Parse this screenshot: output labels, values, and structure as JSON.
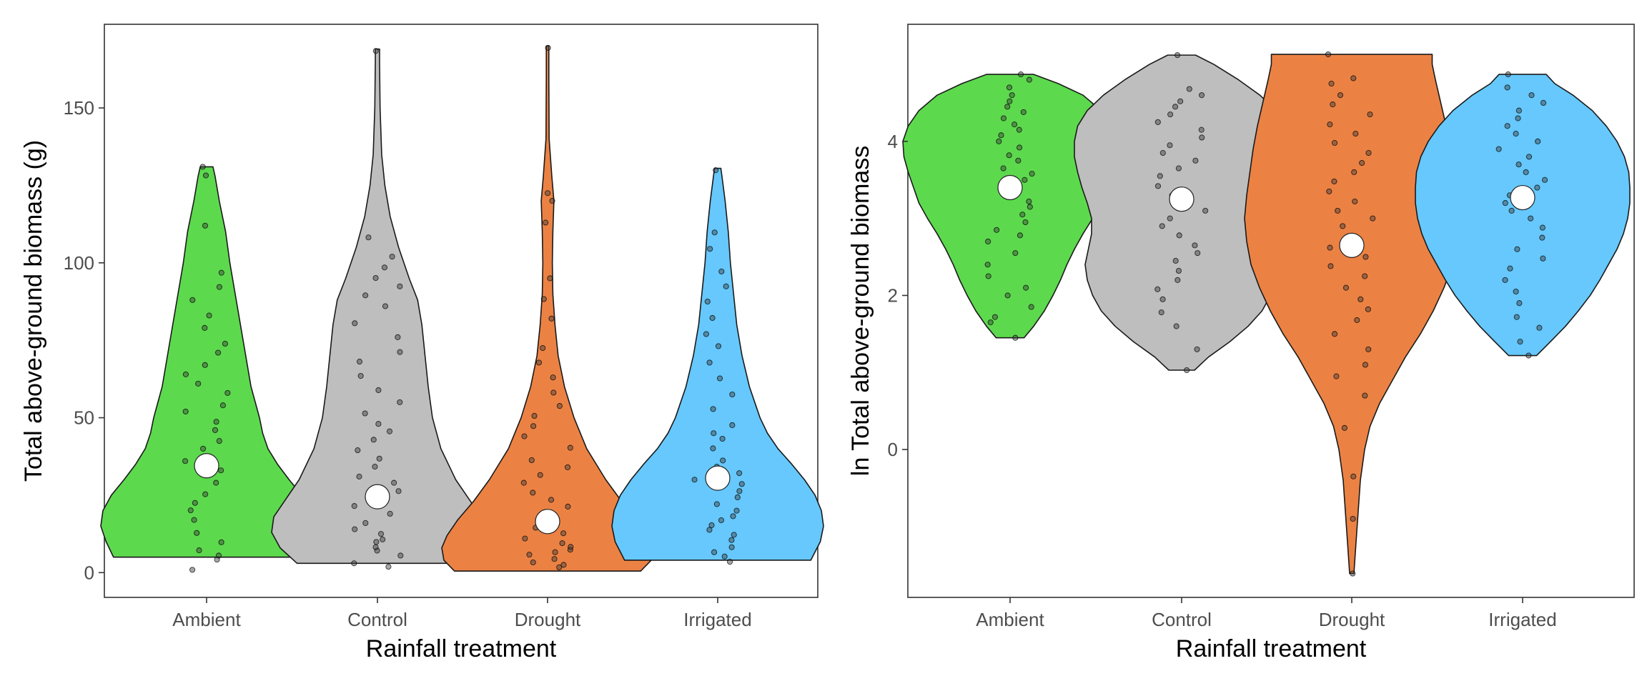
{
  "chart_data": [
    {
      "type": "violin",
      "title": "",
      "xlabel": "Rainfall treatment",
      "ylabel": "Total above-ground biomass (g)",
      "categories": [
        "Ambient",
        "Control",
        "Drought",
        "Irrigated"
      ],
      "colors": [
        "#5dd94e",
        "#bebebe",
        "#eb8244",
        "#66c8fc"
      ],
      "ylim": [
        -8,
        177
      ],
      "yticks": [
        0,
        50,
        100,
        150
      ],
      "ytick_labels": [
        "0",
        "50",
        "100",
        "150"
      ],
      "means": [
        34.5,
        24.5,
        16.5,
        30.5
      ],
      "violins": [
        {
          "category": "Ambient",
          "ymin": 5,
          "ymax": 131,
          "density": [
            [
              5,
              0.88
            ],
            [
              10,
              0.95
            ],
            [
              15,
              1.0
            ],
            [
              20,
              0.98
            ],
            [
              25,
              0.9
            ],
            [
              30,
              0.78
            ],
            [
              35,
              0.67
            ],
            [
              40,
              0.58
            ],
            [
              45,
              0.53
            ],
            [
              50,
              0.5
            ],
            [
              55,
              0.46
            ],
            [
              60,
              0.42
            ],
            [
              70,
              0.37
            ],
            [
              80,
              0.32
            ],
            [
              90,
              0.27
            ],
            [
              100,
              0.22
            ],
            [
              110,
              0.18
            ],
            [
              120,
              0.12
            ],
            [
              128,
              0.08
            ],
            [
              131,
              0.06
            ]
          ]
        },
        {
          "category": "Control",
          "ymin": 3,
          "ymax": 169,
          "density": [
            [
              3,
              0.76
            ],
            [
              8,
              0.92
            ],
            [
              13,
              1.0
            ],
            [
              18,
              0.98
            ],
            [
              23,
              0.88
            ],
            [
              30,
              0.74
            ],
            [
              40,
              0.6
            ],
            [
              50,
              0.52
            ],
            [
              60,
              0.48
            ],
            [
              70,
              0.45
            ],
            [
              80,
              0.42
            ],
            [
              88,
              0.38
            ],
            [
              95,
              0.3
            ],
            [
              105,
              0.2
            ],
            [
              115,
              0.12
            ],
            [
              125,
              0.07
            ],
            [
              135,
              0.04
            ],
            [
              150,
              0.025
            ],
            [
              165,
              0.02
            ],
            [
              169,
              0.02
            ]
          ]
        },
        {
          "category": "Drought",
          "ymin": 0.5,
          "ymax": 170,
          "density": [
            [
              0.5,
              0.88
            ],
            [
              4,
              0.98
            ],
            [
              8,
              1.0
            ],
            [
              12,
              0.95
            ],
            [
              17,
              0.85
            ],
            [
              23,
              0.7
            ],
            [
              30,
              0.55
            ],
            [
              40,
              0.37
            ],
            [
              50,
              0.25
            ],
            [
              60,
              0.16
            ],
            [
              70,
              0.1
            ],
            [
              80,
              0.07
            ],
            [
              90,
              0.05
            ],
            [
              100,
              0.045
            ],
            [
              110,
              0.05
            ],
            [
              120,
              0.06
            ],
            [
              128,
              0.04
            ],
            [
              140,
              0.015
            ],
            [
              160,
              0.012
            ],
            [
              170,
              0.012
            ]
          ]
        },
        {
          "category": "Irrigated",
          "ymin": 4,
          "ymax": 130.5,
          "density": [
            [
              4,
              0.88
            ],
            [
              10,
              0.97
            ],
            [
              15,
              1.0
            ],
            [
              20,
              0.98
            ],
            [
              25,
              0.92
            ],
            [
              30,
              0.82
            ],
            [
              35,
              0.7
            ],
            [
              40,
              0.57
            ],
            [
              45,
              0.47
            ],
            [
              50,
              0.4
            ],
            [
              60,
              0.3
            ],
            [
              70,
              0.23
            ],
            [
              80,
              0.18
            ],
            [
              90,
              0.15
            ],
            [
              100,
              0.12
            ],
            [
              110,
              0.1
            ],
            [
              120,
              0.07
            ],
            [
              128,
              0.04
            ],
            [
              130.5,
              0.03
            ]
          ]
        }
      ],
      "points": [
        [
          4.2,
          0.9,
          5.5,
          7.2,
          9.8,
          12.8,
          17,
          20.1,
          22.5,
          25.3,
          29,
          33,
          36,
          40,
          42.5,
          46,
          48.7,
          52,
          54,
          58,
          61,
          64,
          67,
          71,
          73.9,
          79,
          83,
          88,
          92.2,
          96.8,
          112,
          128.2,
          131
        ],
        [
          1.9,
          3,
          5.5,
          7.1,
          8.2,
          9.9,
          10.7,
          12.5,
          14,
          16,
          19,
          21.5,
          24,
          26.3,
          29,
          31,
          34.2,
          36.8,
          39.5,
          42.9,
          45.6,
          48,
          51.4,
          55,
          58.9,
          63.5,
          68.1,
          71.2,
          76,
          80.5,
          86,
          89.5,
          92.4,
          95.1,
          98.5,
          102,
          108.2,
          168.4
        ],
        [
          1.7,
          2.5,
          3.3,
          4.4,
          5.8,
          6.6,
          7.4,
          8.3,
          9.5,
          11,
          12.7,
          14.5,
          17,
          19.3,
          21.3,
          23.5,
          25.8,
          29,
          31.5,
          34,
          36.3,
          40.3,
          44,
          47.3,
          50.6,
          53.8,
          58.1,
          63,
          67.8,
          72.5,
          82,
          88.3,
          95,
          113,
          120,
          122.5,
          169.4
        ],
        [
          3.5,
          5.2,
          6.6,
          8.2,
          10.5,
          12.2,
          13.8,
          15.3,
          16.9,
          18.2,
          20,
          22.1,
          24.3,
          26.3,
          28.6,
          30,
          32.1,
          34.2,
          36.2,
          40.1,
          43.2,
          45,
          47.6,
          52.8,
          57.5,
          62.7,
          67.8,
          73.1,
          77,
          82.2,
          87.5,
          92.4,
          97.2,
          104.5,
          109.8,
          129.9
        ]
      ]
    },
    {
      "type": "violin",
      "title": "",
      "xlabel": "Rainfall treatment",
      "ylabel": "ln Total above-ground biomass",
      "categories": [
        "Ambient",
        "Control",
        "Drought",
        "Irrigated"
      ],
      "colors": [
        "#5dd94e",
        "#bebebe",
        "#eb8244",
        "#66c8fc"
      ],
      "ylim": [
        -1.92,
        5.52
      ],
      "yticks": [
        0,
        2,
        4
      ],
      "ytick_labels": [
        "0",
        "2",
        "4"
      ],
      "means": [
        3.4,
        3.25,
        2.65,
        3.27
      ],
      "violins": [
        {
          "category": "Ambient",
          "ymin": 1.45,
          "ymax": 4.87,
          "density": [
            [
              1.45,
              0.13
            ],
            [
              1.6,
              0.22
            ],
            [
              1.8,
              0.32
            ],
            [
              2.0,
              0.4
            ],
            [
              2.2,
              0.47
            ],
            [
              2.4,
              0.53
            ],
            [
              2.6,
              0.6
            ],
            [
              2.8,
              0.68
            ],
            [
              3.0,
              0.77
            ],
            [
              3.2,
              0.85
            ],
            [
              3.4,
              0.9
            ],
            [
              3.6,
              0.95
            ],
            [
              3.8,
              0.99
            ],
            [
              4.0,
              1.0
            ],
            [
              4.2,
              0.95
            ],
            [
              4.4,
              0.85
            ],
            [
              4.6,
              0.68
            ],
            [
              4.75,
              0.45
            ],
            [
              4.87,
              0.22
            ]
          ]
        },
        {
          "category": "Control",
          "ymin": 1.03,
          "ymax": 5.12,
          "density": [
            [
              1.03,
              0.12
            ],
            [
              1.2,
              0.25
            ],
            [
              1.4,
              0.45
            ],
            [
              1.6,
              0.62
            ],
            [
              1.8,
              0.75
            ],
            [
              2.0,
              0.83
            ],
            [
              2.2,
              0.88
            ],
            [
              2.4,
              0.9
            ],
            [
              2.6,
              0.87
            ],
            [
              2.8,
              0.84
            ],
            [
              3.0,
              0.84
            ],
            [
              3.2,
              0.88
            ],
            [
              3.4,
              0.93
            ],
            [
              3.6,
              0.97
            ],
            [
              3.8,
              1.0
            ],
            [
              4.0,
              1.0
            ],
            [
              4.2,
              0.97
            ],
            [
              4.4,
              0.88
            ],
            [
              4.6,
              0.73
            ],
            [
              4.8,
              0.53
            ],
            [
              5.0,
              0.3
            ],
            [
              5.12,
              0.13
            ]
          ]
        },
        {
          "category": "Drought",
          "ymin": -1.61,
          "ymax": 5.13,
          "density": [
            [
              -1.61,
              0.02
            ],
            [
              -1.2,
              0.04
            ],
            [
              -0.8,
              0.06
            ],
            [
              -0.4,
              0.08
            ],
            [
              0.0,
              0.12
            ],
            [
              0.3,
              0.17
            ],
            [
              0.6,
              0.26
            ],
            [
              0.9,
              0.38
            ],
            [
              1.2,
              0.5
            ],
            [
              1.5,
              0.64
            ],
            [
              1.8,
              0.76
            ],
            [
              2.1,
              0.86
            ],
            [
              2.4,
              0.94
            ],
            [
              2.7,
              0.98
            ],
            [
              3.0,
              1.0
            ],
            [
              3.3,
              0.98
            ],
            [
              3.6,
              0.95
            ],
            [
              3.9,
              0.92
            ],
            [
              4.2,
              0.88
            ],
            [
              4.5,
              0.83
            ],
            [
              4.8,
              0.78
            ],
            [
              5.0,
              0.75
            ],
            [
              5.13,
              0.75
            ]
          ]
        },
        {
          "category": "Irrigated",
          "ymin": 1.22,
          "ymax": 4.87,
          "density": [
            [
              1.22,
              0.13
            ],
            [
              1.4,
              0.26
            ],
            [
              1.6,
              0.4
            ],
            [
              1.8,
              0.52
            ],
            [
              2.0,
              0.63
            ],
            [
              2.2,
              0.72
            ],
            [
              2.4,
              0.8
            ],
            [
              2.6,
              0.88
            ],
            [
              2.8,
              0.94
            ],
            [
              3.0,
              0.98
            ],
            [
              3.2,
              1.0
            ],
            [
              3.4,
              1.0
            ],
            [
              3.6,
              0.99
            ],
            [
              3.8,
              0.95
            ],
            [
              4.0,
              0.88
            ],
            [
              4.2,
              0.78
            ],
            [
              4.4,
              0.65
            ],
            [
              4.6,
              0.47
            ],
            [
              4.75,
              0.3
            ],
            [
              4.87,
              0.22
            ]
          ]
        }
      ],
      "points": [
        [
          1.45,
          1.65,
          1.72,
          1.85,
          2.0,
          2.1,
          2.25,
          2.4,
          2.55,
          2.7,
          2.78,
          2.85,
          2.95,
          3.05,
          3.15,
          3.22,
          3.3,
          3.4,
          3.5,
          3.58,
          3.65,
          3.75,
          3.82,
          3.92,
          4.0,
          4.08,
          4.15,
          4.22,
          4.3,
          4.38,
          4.45,
          4.52,
          4.6,
          4.7,
          4.8,
          4.87
        ],
        [
          1.03,
          1.3,
          1.6,
          1.78,
          1.95,
          2.08,
          2.2,
          2.32,
          2.45,
          2.55,
          2.65,
          2.78,
          2.9,
          3.0,
          3.1,
          3.2,
          3.3,
          3.42,
          3.55,
          3.65,
          3.75,
          3.85,
          3.95,
          4.05,
          4.15,
          4.25,
          4.35,
          4.45,
          4.52,
          4.6,
          4.68,
          5.12
        ],
        [
          -1.61,
          -0.9,
          -0.35,
          0.28,
          0.7,
          0.95,
          1.1,
          1.3,
          1.5,
          1.68,
          1.82,
          1.95,
          2.1,
          2.25,
          2.38,
          2.5,
          2.62,
          2.75,
          2.9,
          3.0,
          3.1,
          3.22,
          3.35,
          3.48,
          3.6,
          3.72,
          3.85,
          3.98,
          4.1,
          4.22,
          4.35,
          4.48,
          4.6,
          4.75,
          4.82,
          5.13
        ],
        [
          1.22,
          1.4,
          1.58,
          1.72,
          1.9,
          2.05,
          2.2,
          2.35,
          2.48,
          2.6,
          2.75,
          2.88,
          3.0,
          3.1,
          3.2,
          3.3,
          3.4,
          3.5,
          3.6,
          3.7,
          3.8,
          3.9,
          4.0,
          4.1,
          4.2,
          4.3,
          4.4,
          4.5,
          4.6,
          4.7,
          4.87
        ]
      ]
    }
  ]
}
